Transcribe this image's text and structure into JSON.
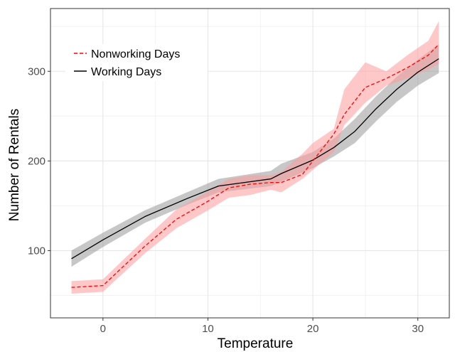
{
  "chart_data": {
    "type": "line",
    "title": "",
    "xlabel": "Temperature",
    "ylabel": "Number of Rentals",
    "xlim": [
      -5,
      33
    ],
    "ylim": [
      25,
      370
    ],
    "xticks": [
      0,
      10,
      20,
      30
    ],
    "yticks": [
      100,
      200,
      300
    ],
    "grid": true,
    "legend_position": "top-left",
    "series": [
      {
        "name": "Working Days",
        "color": "#000000",
        "band_color": "#999999",
        "line_style": "solid",
        "x": [
          -3,
          0,
          4,
          8,
          11,
          16,
          17,
          20,
          22,
          24,
          26,
          28,
          30,
          32
        ],
        "y": [
          91,
          112,
          138,
          158,
          172,
          180,
          186,
          201,
          215,
          233,
          258,
          280,
          299,
          314
        ],
        "lower": [
          82,
          104,
          131,
          151,
          165,
          172,
          177,
          192,
          205,
          220,
          244,
          266,
          284,
          298
        ],
        "upper": [
          100,
          120,
          145,
          165,
          180,
          189,
          197,
          210,
          225,
          247,
          272,
          294,
          313,
          330
        ]
      },
      {
        "name": "Nonworking Days",
        "color": "#ff0000",
        "band_color": "#ff9a9a",
        "line_style": "dashed",
        "x": [
          -3,
          0,
          4,
          7,
          10,
          12,
          14,
          16,
          17,
          19,
          20,
          22,
          23,
          25,
          27,
          29,
          31,
          32
        ],
        "y": [
          59,
          61,
          105,
          135,
          155,
          170,
          174,
          176,
          176,
          185,
          200,
          230,
          252,
          282,
          292,
          304,
          318,
          330
        ],
        "lower": [
          52,
          54,
          97,
          125,
          145,
          159,
          162,
          168,
          165,
          180,
          190,
          210,
          240,
          265,
          284,
          292,
          302,
          308
        ],
        "upper": [
          66,
          68,
          113,
          146,
          166,
          180,
          184,
          184,
          188,
          208,
          220,
          236,
          280,
          310,
          300,
          318,
          334,
          356
        ]
      }
    ]
  }
}
